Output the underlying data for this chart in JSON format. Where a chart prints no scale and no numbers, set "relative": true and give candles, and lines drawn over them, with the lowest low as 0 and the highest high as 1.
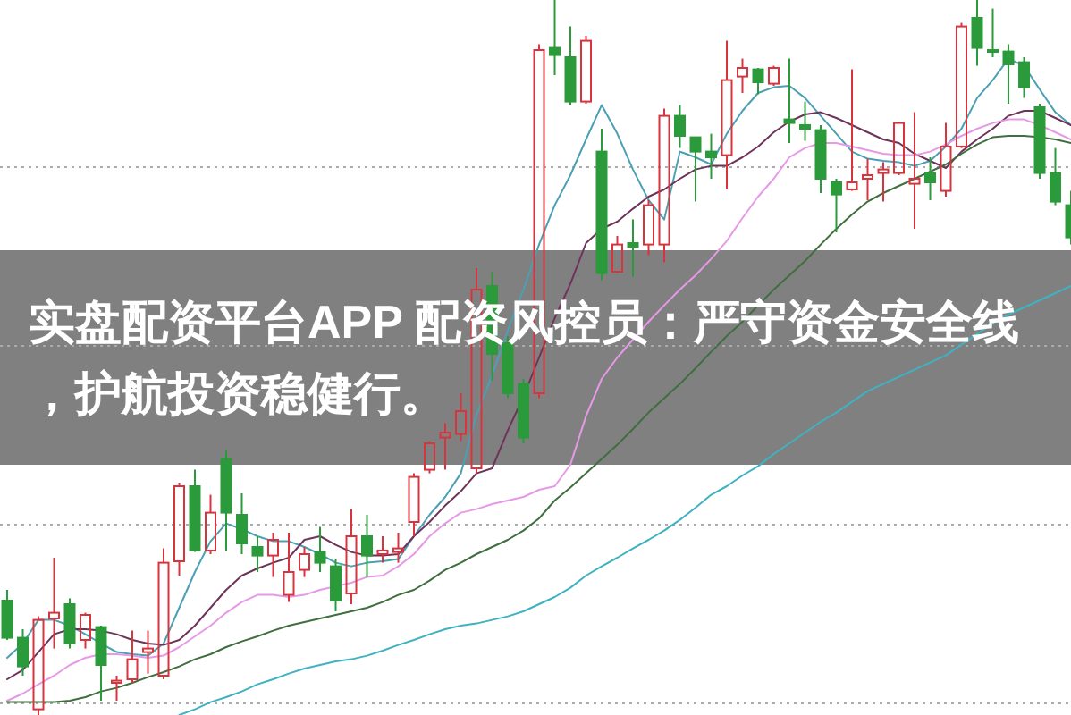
{
  "chart_data": {
    "type": "candlestick",
    "title": "实盘配资平台APP 配资风控员：严守资金安全线，护航投资稳健行。",
    "relative": true,
    "grid": "y",
    "categories": [
      null,
      null,
      null,
      null,
      null,
      null,
      null,
      null,
      null,
      null,
      null,
      null,
      null,
      null,
      null,
      null,
      null,
      null,
      null,
      null,
      null,
      null,
      null,
      null,
      null,
      null,
      null,
      null,
      null,
      null,
      null,
      null,
      null,
      null,
      null,
      null,
      null,
      null,
      null,
      null,
      null,
      null,
      null,
      null,
      null,
      null,
      null,
      null,
      null,
      null,
      null,
      null,
      null,
      null,
      null,
      null,
      null,
      null,
      null,
      null,
      null,
      null,
      null,
      null,
      null,
      null,
      null,
      null,
      null
    ],
    "ohlc": [
      [
        0.16,
        0.175,
        0.105,
        0.108
      ],
      [
        0.108,
        0.12,
        0.055,
        0.068
      ],
      [
        0.008,
        0.138,
        0,
        0.133
      ],
      [
        0.135,
        0.22,
        0.093,
        0.143
      ],
      [
        0.155,
        0.163,
        0.093,
        0.1
      ],
      [
        0.105,
        0.143,
        0.093,
        0.14
      ],
      [
        0.123,
        0.125,
        0.02,
        0.07
      ],
      [
        0.045,
        0.055,
        0.02,
        0.048
      ],
      [
        0.05,
        0.118,
        0.045,
        0.078
      ],
      [
        0.088,
        0.118,
        0.058,
        0.093
      ],
      [
        0.055,
        0.233,
        0.05,
        0.213
      ],
      [
        0.215,
        0.325,
        0.195,
        0.32
      ],
      [
        0.32,
        0.343,
        0.228,
        0.23
      ],
      [
        0.23,
        0.308,
        0.225,
        0.283
      ],
      [
        0.358,
        0.37,
        0.23,
        0.283
      ],
      [
        0.28,
        0.31,
        0.225,
        0.24
      ],
      [
        0.235,
        0.25,
        0.2,
        0.223
      ],
      [
        0.223,
        0.255,
        0.193,
        0.245
      ],
      [
        0.168,
        0.255,
        0.158,
        0.2
      ],
      [
        0.203,
        0.235,
        0.193,
        0.225
      ],
      [
        0.228,
        0.263,
        0.2,
        0.213
      ],
      [
        0.208,
        0.218,
        0.145,
        0.16
      ],
      [
        0.17,
        0.288,
        0.155,
        0.25
      ],
      [
        0.25,
        0.28,
        0.193,
        0.223
      ],
      [
        0.225,
        0.25,
        0.213,
        0.23
      ],
      [
        0.228,
        0.255,
        0.213,
        0.233
      ],
      [
        0.27,
        0.338,
        0.25,
        0.333
      ],
      [
        0.343,
        0.383,
        0.338,
        0.38
      ],
      [
        0.388,
        0.408,
        0.343,
        0.395
      ],
      [
        0.393,
        0.45,
        0.383,
        0.425
      ],
      [
        0.345,
        0.625,
        0.338,
        0.595
      ],
      [
        0.6,
        0.62,
        0.468,
        0.505
      ],
      [
        0.52,
        0.53,
        0.443,
        0.45
      ],
      [
        0.463,
        0.47,
        0.38,
        0.388
      ],
      [
        0.45,
        0.938,
        0.443,
        0.93
      ],
      [
        0.933,
        1,
        0.895,
        0.923
      ],
      [
        0.92,
        0.963,
        0.853,
        0.858
      ],
      [
        0.858,
        0.95,
        0.855,
        0.943
      ],
      [
        0.788,
        0.82,
        0.608,
        0.618
      ],
      [
        0.62,
        0.67,
        0.618,
        0.658
      ],
      [
        0.66,
        0.693,
        0.613,
        0.655
      ],
      [
        0.658,
        0.72,
        0.643,
        0.713
      ],
      [
        0.658,
        0.848,
        0.633,
        0.838
      ],
      [
        0.838,
        0.853,
        0.793,
        0.81
      ],
      [
        0.808,
        0.808,
        0.718,
        0.788
      ],
      [
        0.788,
        0.813,
        0.75,
        0.78
      ],
      [
        0.783,
        0.943,
        0.735,
        0.888
      ],
      [
        0.893,
        0.918,
        0.87,
        0.905
      ],
      [
        0.903,
        0.905,
        0.868,
        0.885
      ],
      [
        0.883,
        0.908,
        0.88,
        0.905
      ],
      [
        0.833,
        0.918,
        0.8,
        0.828
      ],
      [
        0.825,
        0.858,
        0.803,
        0.82
      ],
      [
        0.818,
        0.825,
        0.73,
        0.75
      ],
      [
        0.745,
        0.75,
        0.675,
        0.728
      ],
      [
        0.735,
        0.903,
        0.733,
        0.745
      ],
      [
        0.75,
        0.778,
        0.72,
        0.755
      ],
      [
        0.758,
        0.773,
        0.718,
        0.763
      ],
      [
        0.758,
        0.83,
        0.755,
        0.828
      ],
      [
        0.743,
        0.843,
        0.68,
        0.75
      ],
      [
        0.758,
        0.78,
        0.72,
        0.745
      ],
      [
        0.733,
        0.828,
        0.725,
        0.795
      ],
      [
        0.795,
        0.968,
        0.793,
        0.963
      ],
      [
        0.975,
        1,
        0.908,
        0.933
      ],
      [
        0.93,
        0.988,
        0.92,
        0.928
      ],
      [
        0.928,
        0.938,
        0.855,
        0.91
      ],
      [
        0.913,
        0.92,
        0.863,
        0.878
      ],
      [
        0.85,
        0.855,
        0.75,
        0.758
      ],
      [
        0.758,
        0.793,
        0.713,
        0.718
      ],
      [
        0.713,
        0.733,
        0.658,
        0.668
      ]
    ],
    "colors": [
      "#2a9a3a",
      "#2a9a3a",
      "#d8343e",
      "#d8343e",
      "#2a9a3a",
      "#d8343e",
      "#2a9a3a",
      "#d8343e",
      "#d8343e",
      "#d8343e",
      "#d8343e",
      "#d8343e",
      "#2a9a3a",
      "#d8343e",
      "#2a9a3a",
      "#2a9a3a",
      "#2a9a3a",
      "#d8343e",
      "#d8343e",
      "#d8343e",
      "#2a9a3a",
      "#2a9a3a",
      "#d8343e",
      "#2a9a3a",
      "#d8343e",
      "#d8343e",
      "#d8343e",
      "#d8343e",
      "#d8343e",
      "#d8343e",
      "#d8343e",
      "#2a9a3a",
      "#2a9a3a",
      "#2a9a3a",
      "#d8343e",
      "#2a9a3a",
      "#2a9a3a",
      "#d8343e",
      "#2a9a3a",
      "#d8343e",
      "#2a9a3a",
      "#d8343e",
      "#d8343e",
      "#2a9a3a",
      "#2a9a3a",
      "#2a9a3a",
      "#d8343e",
      "#d8343e",
      "#2a9a3a",
      "#d8343e",
      "#2a9a3a",
      "#2a9a3a",
      "#2a9a3a",
      "#2a9a3a",
      "#d8343e",
      "#d8343e",
      "#d8343e",
      "#d8343e",
      "#d8343e",
      "#2a9a3a",
      "#d8343e",
      "#d8343e",
      "#2a9a3a",
      "#2a9a3a",
      "#2a9a3a",
      "#2a9a3a",
      "#2a9a3a",
      "#2a9a3a",
      "#2a9a3a"
    ],
    "series": [
      {
        "type": "line",
        "color": "#4c9fb4",
        "values": [
          0.08,
          0.1,
          0.133,
          0.133,
          0.125,
          0.113,
          0.1,
          0.088,
          0.085,
          0.083,
          0.1,
          0.15,
          0.2,
          0.243,
          0.268,
          0.26,
          0.25,
          0.243,
          0.243,
          0.235,
          0.225,
          0.213,
          0.208,
          0.213,
          0.215,
          0.218,
          0.25,
          0.28,
          0.305,
          0.338,
          0.42,
          0.475,
          0.538,
          0.595,
          0.658,
          0.713,
          0.755,
          0.805,
          0.853,
          0.813,
          0.763,
          0.72,
          0.693,
          0.788,
          0.78,
          0.77,
          0.813,
          0.845,
          0.87,
          0.878,
          0.88,
          0.863,
          0.838,
          0.813,
          0.788,
          0.778,
          0.775,
          0.773,
          0.768,
          0.775,
          0.795,
          0.82,
          0.863,
          0.888,
          0.918,
          0.908,
          0.875,
          0.843,
          0.825
        ]
      },
      {
        "type": "line",
        "color": "#6e3358",
        "values": [
          0.05,
          0.063,
          0.088,
          0.113,
          0.12,
          0.12,
          0.118,
          0.113,
          0.105,
          0.1,
          0.098,
          0.105,
          0.125,
          0.15,
          0.175,
          0.195,
          0.205,
          0.213,
          0.22,
          0.245,
          0.25,
          0.238,
          0.228,
          0.223,
          0.223,
          0.225,
          0.25,
          0.27,
          0.293,
          0.313,
          0.338,
          0.345,
          0.398,
          0.445,
          0.5,
          0.555,
          0.603,
          0.66,
          0.68,
          0.69,
          0.708,
          0.725,
          0.735,
          0.75,
          0.763,
          0.768,
          0.768,
          0.78,
          0.795,
          0.815,
          0.83,
          0.84,
          0.843,
          0.835,
          0.825,
          0.815,
          0.805,
          0.8,
          0.785,
          0.775,
          0.765,
          0.788,
          0.805,
          0.82,
          0.838,
          0.845,
          0.845,
          0.835,
          0.825
        ]
      },
      {
        "type": "line",
        "color": "#e699e6",
        "values": [
          0.02,
          0.03,
          0.043,
          0.055,
          0.07,
          0.08,
          0.085,
          0.085,
          0.083,
          0.08,
          0.083,
          0.095,
          0.11,
          0.125,
          0.143,
          0.158,
          0.168,
          0.168,
          0.165,
          0.168,
          0.175,
          0.18,
          0.185,
          0.193,
          0.195,
          0.208,
          0.225,
          0.25,
          0.268,
          0.283,
          0.288,
          0.295,
          0.3,
          0.305,
          0.315,
          0.32,
          0.35,
          0.418,
          0.47,
          0.5,
          0.525,
          0.55,
          0.573,
          0.595,
          0.615,
          0.638,
          0.663,
          0.695,
          0.725,
          0.75,
          0.78,
          0.793,
          0.8,
          0.8,
          0.795,
          0.79,
          0.785,
          0.783,
          0.783,
          0.788,
          0.798,
          0.81,
          0.82,
          0.828,
          0.833,
          0.833,
          0.825,
          0.815,
          0.805
        ]
      },
      {
        "type": "line",
        "color": "#3f6e3f",
        "values": [
          0.018,
          0.018,
          0.018,
          0.018,
          0.02,
          0.025,
          0.033,
          0.038,
          0.045,
          0.053,
          0.06,
          0.068,
          0.078,
          0.085,
          0.095,
          0.103,
          0.11,
          0.118,
          0.125,
          0.13,
          0.135,
          0.14,
          0.145,
          0.15,
          0.158,
          0.168,
          0.175,
          0.188,
          0.203,
          0.213,
          0.225,
          0.235,
          0.245,
          0.258,
          0.275,
          0.3,
          0.318,
          0.338,
          0.358,
          0.378,
          0.4,
          0.423,
          0.443,
          0.463,
          0.485,
          0.508,
          0.53,
          0.55,
          0.573,
          0.595,
          0.615,
          0.635,
          0.658,
          0.68,
          0.7,
          0.718,
          0.73,
          0.74,
          0.75,
          0.76,
          0.77,
          0.785,
          0.798,
          0.808,
          0.81,
          0.81,
          0.808,
          0.805,
          0.8
        ]
      },
      {
        "type": "line",
        "color": "#3fb2c2",
        "values": [
          null,
          null,
          null,
          null,
          null,
          null,
          null,
          null,
          null,
          null,
          null,
          0,
          0.008,
          0.018,
          0.025,
          0.033,
          0.043,
          0.05,
          0.058,
          0.065,
          0.07,
          0.075,
          0.078,
          0.083,
          0.09,
          0.098,
          0.105,
          0.113,
          0.12,
          0.125,
          0.128,
          0.133,
          0.138,
          0.145,
          0.155,
          0.165,
          0.178,
          0.195,
          0.208,
          0.22,
          0.233,
          0.245,
          0.258,
          0.273,
          0.29,
          0.308,
          0.32,
          0.335,
          0.348,
          0.365,
          0.38,
          0.395,
          0.41,
          0.423,
          0.438,
          0.453,
          0.463,
          0.473,
          0.483,
          0.493,
          0.503,
          0.518,
          0.533,
          0.548,
          0.56,
          0.57,
          0.58,
          0.59,
          0.6
        ]
      }
    ]
  }
}
